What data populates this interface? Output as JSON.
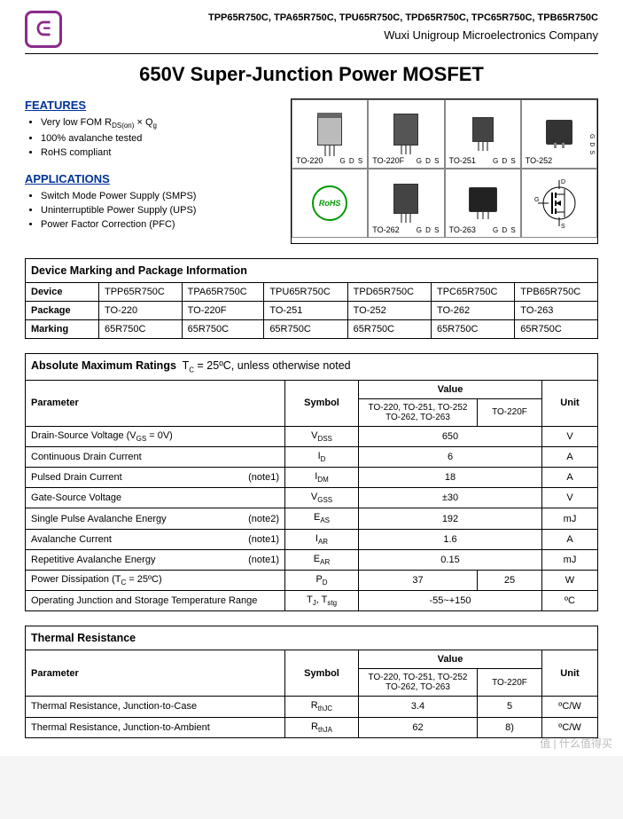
{
  "header": {
    "part_numbers": "TPP65R750C, TPA65R750C, TPU65R750C, TPD65R750C, TPC65R750C, TPB65R750C",
    "company": "Wuxi Unigroup Microelectronics Company",
    "logo_letter": "ᕮ",
    "logo_color": "#8b2a8a"
  },
  "title": "650V Super-Junction Power MOSFET",
  "features": {
    "heading": "FEATURES",
    "items": [
      "Very low FOM R_DS(on) × Q_g",
      "100% avalanche tested",
      "RoHS compliant"
    ]
  },
  "applications": {
    "heading": "APPLICATIONS",
    "items": [
      "Switch Mode Power Supply (SMPS)",
      "Uninterruptible Power Supply (UPS)",
      "Power Factor Correction (PFC)"
    ]
  },
  "packages_grid": {
    "cells": [
      {
        "label": "TO-220",
        "pins": "G D S",
        "shape": "to220"
      },
      {
        "label": "TO-220F",
        "pins": "G D S",
        "shape": "to220f"
      },
      {
        "label": "TO-251",
        "pins": "G D S",
        "shape": "to251"
      },
      {
        "label": "TO-252",
        "pins": "G D S",
        "shape": "to252"
      },
      {
        "label": "",
        "pins": "",
        "shape": "rohs"
      },
      {
        "label": "TO-262",
        "pins": "G D S",
        "shape": "to262"
      },
      {
        "label": "TO-263",
        "pins": "G D S",
        "shape": "to263"
      },
      {
        "label": "",
        "pins": "",
        "shape": "symbol"
      }
    ],
    "rohs_text": "RoHS",
    "symbol_pins": {
      "D": "D",
      "G": "G",
      "S": "S"
    }
  },
  "device_table": {
    "title": "Device Marking and Package Information",
    "row_labels": [
      "Device",
      "Package",
      "Marking"
    ],
    "cols": [
      "TPP65R750C",
      "TPA65R750C",
      "TPU65R750C",
      "TPD65R750C",
      "TPC65R750C",
      "TPB65R750C"
    ],
    "package_row": [
      "TO-220",
      "TO-220F",
      "TO-251",
      "TO-252",
      "TO-262",
      "TO-263"
    ],
    "marking_row": [
      "65R750C",
      "65R750C",
      "65R750C",
      "65R750C",
      "65R750C",
      "65R750C"
    ]
  },
  "abs_max": {
    "title_a": "Absolute Maximum Ratings",
    "title_b": "  T_C = 25ºC, unless otherwise noted",
    "headers": {
      "param": "Parameter",
      "symbol": "Symbol",
      "value": "Value",
      "unit": "Unit",
      "value_sub1": "TO-220, TO-251, TO-252\nTO-262, TO-263",
      "value_sub2": "TO-220F"
    },
    "rows": [
      {
        "param": "Drain-Source Voltage (V_GS = 0V)",
        "symbol": "V_DSS",
        "v1": "650",
        "v2": "",
        "unit": "V",
        "merged": true
      },
      {
        "param": "Continuous Drain Current",
        "symbol": "I_D",
        "v1": "6",
        "v2": "",
        "unit": "A",
        "merged": true
      },
      {
        "param": "Pulsed Drain Current",
        "note": "(note1)",
        "symbol": "I_DM",
        "v1": "18",
        "v2": "",
        "unit": "A",
        "merged": true
      },
      {
        "param": "Gate-Source Voltage",
        "symbol": "V_GSS",
        "v1": "±30",
        "v2": "",
        "unit": "V",
        "merged": true
      },
      {
        "param": "Single Pulse Avalanche Energy",
        "note": "(note2)",
        "symbol": "E_AS",
        "v1": "192",
        "v2": "",
        "unit": "mJ",
        "merged": true
      },
      {
        "param": "Avalanche Current",
        "note": "(note1)",
        "symbol": "I_AR",
        "v1": "1.6",
        "v2": "",
        "unit": "A",
        "merged": true
      },
      {
        "param": "Repetitive Avalanche Energy",
        "note": "(note1)",
        "symbol": "E_AR",
        "v1": "0.15",
        "v2": "",
        "unit": "mJ",
        "merged": true
      },
      {
        "param": "Power Dissipation (T_C = 25ºC)",
        "symbol": "P_D",
        "v1": "37",
        "v2": "25",
        "unit": "W",
        "merged": false
      },
      {
        "param": "Operating Junction and Storage Temperature Range",
        "symbol": "T_J, T_stg",
        "v1": "-55~+150",
        "v2": "",
        "unit": "ºC",
        "merged": true
      }
    ]
  },
  "thermal": {
    "title": "Thermal Resistance",
    "headers": {
      "param": "Parameter",
      "symbol": "Symbol",
      "value": "Value",
      "unit": "Unit",
      "value_sub1": "TO-220, TO-251, TO-252\nTO-262, TO-263",
      "value_sub2": "TO-220F"
    },
    "rows": [
      {
        "param": "Thermal Resistance, Junction-to-Case",
        "symbol": "R_thJC",
        "v1": "3.4",
        "v2": "5",
        "unit": "ºC/W",
        "merged": false
      },
      {
        "param": "Thermal Resistance, Junction-to-Ambient",
        "symbol": "R_thJA",
        "v1": "62",
        "v2": "8)",
        "unit": "ºC/W",
        "merged": false
      }
    ]
  },
  "watermark": "值 | 什么值得买",
  "colors": {
    "heading_blue": "#003399",
    "border": "#000000",
    "cell_border": "#888888",
    "rohs_green": "#009900",
    "pkg_gray": "#bbbbbb",
    "watermark": "#bbbbbb",
    "bg": "#ffffff"
  }
}
